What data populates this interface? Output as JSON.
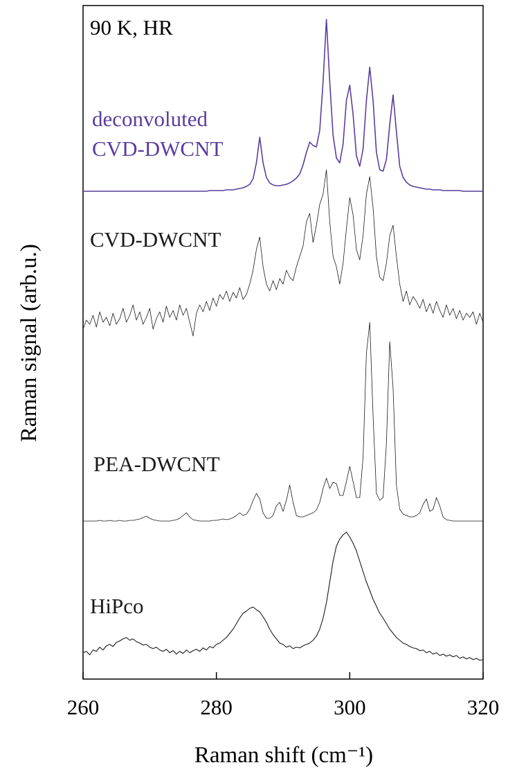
{
  "chart_data": {
    "type": "line",
    "annotation": "90 K, HR",
    "x_label": "Raman shift (cm⁻¹)",
    "y_label": "Raman signal (arb.u.)",
    "xlim": [
      260,
      320
    ],
    "xticks": [
      260,
      280,
      300,
      320
    ],
    "ylim": [
      0,
      972
    ],
    "x": [
      260,
      260.5,
      261,
      261.5,
      262,
      262.5,
      263,
      263.5,
      264,
      264.5,
      265,
      265.5,
      266,
      266.5,
      267,
      267.5,
      268,
      268.5,
      269,
      269.5,
      270,
      270.5,
      271,
      271.5,
      272,
      272.5,
      273,
      273.5,
      274,
      274.5,
      275,
      275.5,
      276,
      276.5,
      277,
      277.5,
      278,
      278.5,
      279,
      279.5,
      280,
      280.5,
      281,
      281.5,
      282,
      282.5,
      283,
      283.5,
      284,
      284.5,
      285,
      285.5,
      286,
      286.5,
      287,
      287.5,
      288,
      288.5,
      289,
      289.5,
      290,
      290.5,
      291,
      291.5,
      292,
      292.5,
      293,
      293.5,
      294,
      294.5,
      295,
      295.5,
      296,
      296.5,
      297,
      297.5,
      298,
      298.5,
      299,
      299.5,
      300,
      300.5,
      301,
      301.5,
      302,
      302.5,
      303,
      303.5,
      304,
      304.5,
      305,
      305.5,
      306,
      306.5,
      307,
      307.5,
      308,
      308.5,
      309,
      309.5,
      310,
      310.5,
      311,
      311.5,
      312,
      312.5,
      313,
      313.5,
      314,
      314.5,
      315,
      315.5,
      316,
      316.5,
      317,
      317.5,
      318,
      318.5,
      319,
      319.5,
      320
    ],
    "series": [
      {
        "name": "deconvoluted CVD-DWCNT",
        "color": "#5a3d9e",
        "values": [
          704,
          704,
          704,
          704,
          704,
          704,
          704,
          704,
          704,
          704,
          704,
          704,
          704,
          704,
          704,
          704,
          704,
          704,
          704,
          704,
          704,
          704,
          704,
          704,
          704,
          704,
          704,
          704,
          704,
          704,
          704,
          704,
          704,
          704,
          704,
          704,
          704,
          704,
          705,
          705,
          705,
          705,
          705,
          706,
          706,
          706,
          707,
          708,
          709,
          711,
          714,
          722,
          745,
          782,
          745,
          724,
          716,
          713,
          712,
          712,
          713,
          714,
          716,
          719,
          723,
          729,
          742,
          760,
          775,
          770,
          768,
          792,
          862,
          952,
          862,
          785,
          752,
          745,
          772,
          835,
          857,
          815,
          755,
          740,
          765,
          835,
          883,
          835,
          760,
          735,
          733,
          750,
          800,
          843,
          790,
          740,
          724,
          717,
          713,
          711,
          710,
          709,
          708,
          707,
          707,
          706,
          706,
          706,
          705,
          705,
          705,
          705,
          705,
          705,
          704,
          704,
          704,
          704,
          704,
          704,
          704
        ]
      },
      {
        "name": "CVD-DWCNT",
        "color": "#1a1a1a",
        "values": [
          505,
          518,
          512,
          525,
          508,
          530,
          515,
          522,
          510,
          528,
          512,
          520,
          535,
          515,
          525,
          540,
          518,
          530,
          512,
          522,
          535,
          505,
          520,
          530,
          515,
          538,
          522,
          532,
          518,
          540,
          525,
          535,
          515,
          495,
          528,
          540,
          530,
          545,
          532,
          550,
          538,
          555,
          548,
          560,
          545,
          558,
          550,
          565,
          548,
          555,
          570,
          590,
          620,
          638,
          595,
          570,
          560,
          575,
          562,
          578,
          570,
          590,
          580,
          575,
          595,
          610,
          625,
          660,
          672,
          630,
          655,
          685,
          700,
          735,
          660,
          610,
          595,
          570,
          600,
          650,
          695,
          670,
          620,
          605,
          640,
          700,
          725,
          680,
          610,
          580,
          575,
          600,
          640,
          655,
          610,
          570,
          545,
          560,
          540,
          552,
          545,
          535,
          548,
          530,
          542,
          528,
          545,
          532,
          522,
          540,
          525,
          535,
          520,
          532,
          518,
          528,
          522,
          530,
          512,
          528,
          515
        ]
      },
      {
        "name": "PEA-DWCNT",
        "color": "#1a1a1a",
        "values": [
          228,
          228,
          228,
          228,
          228,
          229,
          228,
          228,
          229,
          228,
          228,
          229,
          228,
          228,
          229,
          229,
          230,
          231,
          233,
          235,
          232,
          230,
          229,
          228,
          228,
          228,
          228,
          229,
          230,
          232,
          236,
          240,
          234,
          230,
          229,
          228,
          228,
          228,
          228,
          229,
          229,
          230,
          231,
          230,
          231,
          233,
          236,
          240,
          236,
          238,
          245,
          258,
          268,
          260,
          240,
          232,
          232,
          236,
          250,
          255,
          242,
          258,
          280,
          255,
          236,
          234,
          234,
          236,
          238,
          240,
          244,
          255,
          275,
          290,
          275,
          284,
          282,
          265,
          265,
          285,
          307,
          285,
          262,
          262,
          320,
          470,
          515,
          380,
          268,
          258,
          262,
          340,
          487,
          420,
          280,
          245,
          238,
          236,
          234,
          234,
          236,
          240,
          252,
          260,
          242,
          245,
          262,
          250,
          234,
          230,
          229,
          228,
          228,
          228,
          228,
          228,
          228,
          228,
          228,
          228,
          228
        ]
      },
      {
        "name": "HiPco",
        "color": "#1a1a1a",
        "values": [
          38,
          40,
          35,
          42,
          40,
          46,
          42,
          48,
          50,
          47,
          53,
          55,
          58,
          60,
          56,
          58,
          54,
          52,
          49,
          50,
          46,
          44,
          46,
          42,
          40,
          43,
          38,
          41,
          36,
          40,
          37,
          42,
          38,
          41,
          43,
          40,
          45,
          42,
          47,
          45,
          50,
          52,
          56,
          60,
          66,
          72,
          80,
          88,
          95,
          98,
          102,
          104,
          100,
          97,
          90,
          82,
          72,
          64,
          58,
          52,
          50,
          46,
          48,
          44,
          46,
          45,
          48,
          50,
          52,
          56,
          62,
          72,
          88,
          110,
          140,
          170,
          192,
          202,
          208,
          212,
          205,
          196,
          185,
          170,
          155,
          140,
          128,
          115,
          105,
          95,
          88,
          80,
          72,
          66,
          60,
          56,
          52,
          50,
          47,
          45,
          44,
          41,
          42,
          38,
          40,
          36,
          38,
          34,
          36,
          33,
          35,
          32,
          34,
          30,
          32,
          29,
          31,
          28,
          30,
          27,
          28
        ]
      }
    ]
  }
}
